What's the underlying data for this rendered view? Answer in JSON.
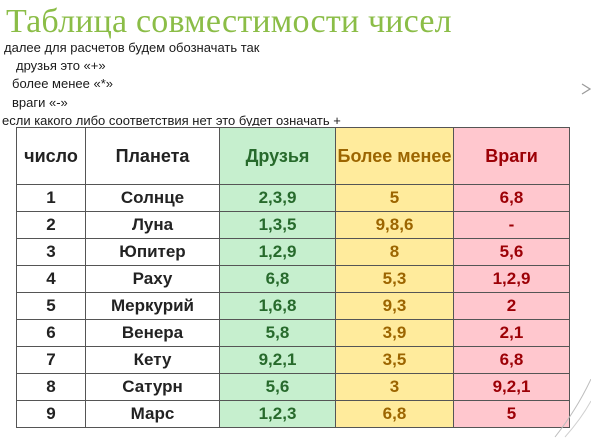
{
  "title": "Таблица совместимости чисел",
  "intro": {
    "line1": "далее для расчетов будем обозначать так",
    "line2": "друзья  это «+»",
    "line3": "более менее «*»",
    "line4": "враги «-»",
    "line5": "если какого либо соответствия нет это будет означать +"
  },
  "table": {
    "headers": {
      "number": "число",
      "planet": "Планета",
      "friends": "Друзья",
      "more_less": "Более менее",
      "enemies": "Враги"
    },
    "rows": [
      {
        "number": "1",
        "planet": "Солнце",
        "friends": "2,3,9",
        "more_less": "5",
        "enemies": "6,8"
      },
      {
        "number": "2",
        "planet": "Луна",
        "friends": "1,3,5",
        "more_less": "9,8,6",
        "enemies": "-"
      },
      {
        "number": "3",
        "planet": "Юпитер",
        "friends": "1,2,9",
        "more_less": "8",
        "enemies": "5,6"
      },
      {
        "number": "4",
        "planet": "Раху",
        "friends": "6,8",
        "more_less": "5,3",
        "enemies": "1,2,9"
      },
      {
        "number": "5",
        "planet": "Меркурий",
        "friends": "1,6,8",
        "more_less": "9,3",
        "enemies": "2"
      },
      {
        "number": "6",
        "planet": "Венера",
        "friends": "5,8",
        "more_less": "3,9",
        "enemies": "2,1"
      },
      {
        "number": "7",
        "planet": "Кету",
        "friends": "9,2,1",
        "more_less": "3,5",
        "enemies": "6,8"
      },
      {
        "number": "8",
        "planet": "Сатурн",
        "friends": "5,6",
        "more_less": "3",
        "enemies": "9,2,1"
      },
      {
        "number": "9",
        "planet": "Марс",
        "friends": "1,2,3",
        "more_less": "6,8",
        "enemies": "5"
      }
    ]
  },
  "colors": {
    "title": "#8bbd47",
    "friends_bg": "#c6efce",
    "more_less_bg": "#ffeb9c",
    "enemies_bg": "#ffc7ce"
  }
}
